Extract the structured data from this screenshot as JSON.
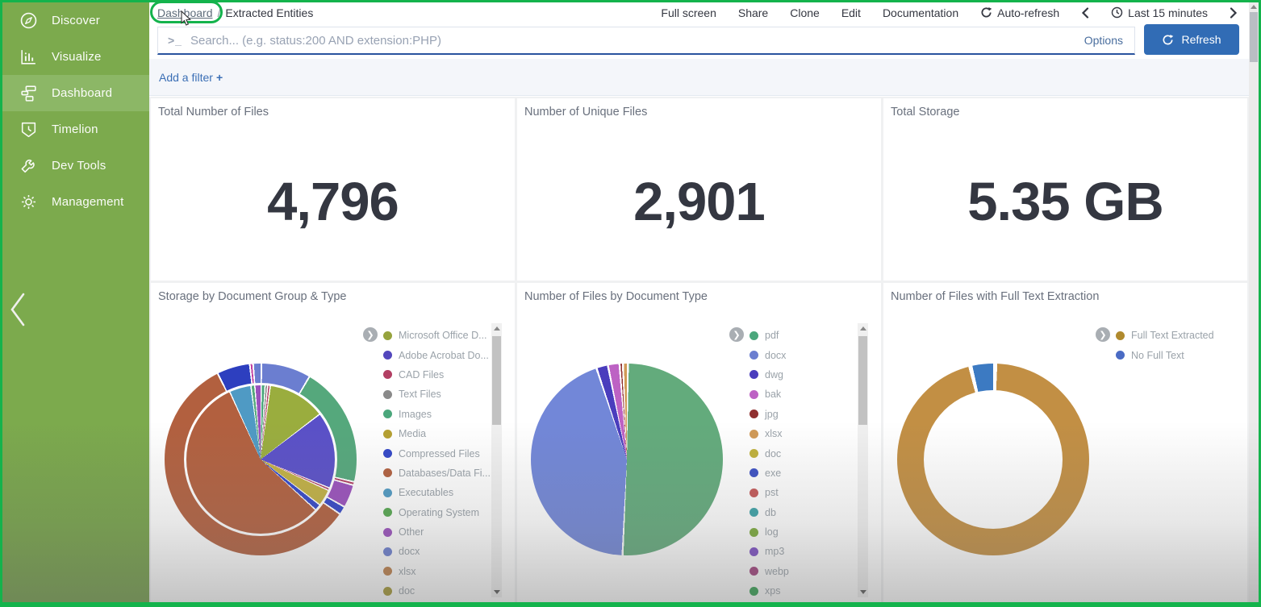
{
  "colors": {
    "annotation_green": "#14b34c",
    "sidebar_green": "#7caa4d",
    "sidebar_active": "#8cb766",
    "refresh_blue": "#316cb5",
    "link_blue": "#3b6fb5"
  },
  "sidebar": {
    "items": [
      {
        "label": "Discover",
        "icon": "compass",
        "active": false
      },
      {
        "label": "Visualize",
        "icon": "bar-chart",
        "active": false
      },
      {
        "label": "Dashboard",
        "icon": "dashboard-grid",
        "active": true
      },
      {
        "label": "Timelion",
        "icon": "timelion-shield",
        "active": false
      },
      {
        "label": "Dev Tools",
        "icon": "wrench",
        "active": false
      },
      {
        "label": "Management",
        "icon": "gear",
        "active": false
      }
    ]
  },
  "topnav": {
    "breadcrumb": {
      "link": "Dashboard",
      "separator": "/",
      "current": "Extracted Entities"
    },
    "menu": [
      "Full screen",
      "Share",
      "Clone",
      "Edit",
      "Documentation"
    ],
    "auto_refresh_label": "Auto-refresh",
    "time_range_label": "Last 15 minutes"
  },
  "search": {
    "prompt_glyph": ">_",
    "placeholder": "Search... (e.g. status:200 AND extension:PHP)",
    "value": "",
    "options_label": "Options",
    "refresh_label": "Refresh"
  },
  "filter_bar": {
    "add_filter_label": "Add a filter",
    "plus": "+"
  },
  "chart_data": [
    {
      "type": "metric",
      "title": "Total Number of Files",
      "value": "4,796"
    },
    {
      "type": "metric",
      "title": "Number of Unique Files",
      "value": "2,901"
    },
    {
      "type": "metric",
      "title": "Total Storage",
      "value": "5.35 GB"
    },
    {
      "type": "pie",
      "variant": "nested-two-ring",
      "title": "Storage by Document Group & Type",
      "legend": [
        {
          "label": "Microsoft Office D...",
          "color": "#96a33d"
        },
        {
          "label": "Adobe Acrobat Do...",
          "color": "#5347bd"
        },
        {
          "label": "CAD Files",
          "color": "#b23f63"
        },
        {
          "label": "Text Files",
          "color": "#8a8a8a"
        },
        {
          "label": "Images",
          "color": "#4ba77c"
        },
        {
          "label": "Media",
          "color": "#b5a031"
        },
        {
          "label": "Compressed Files",
          "color": "#3347c8"
        },
        {
          "label": "Databases/Data Fi...",
          "color": "#b2603f"
        },
        {
          "label": "Executables",
          "color": "#4f9ac4"
        },
        {
          "label": "Operating System",
          "color": "#55a84f"
        },
        {
          "label": "Other",
          "color": "#9a50bd"
        },
        {
          "label": "docx",
          "color": "#6b7ed0"
        },
        {
          "label": "xlsx",
          "color": "#bd7e48"
        },
        {
          "label": "doc",
          "color": "#a39630"
        }
      ],
      "inner_slices": [
        {
          "label": "Images",
          "color": "#4ba77c",
          "deg": 3
        },
        {
          "label": "Text Files",
          "color": "#8a8a8a",
          "deg": 2
        },
        {
          "label": "CAD Files",
          "color": "#b23f63",
          "deg": 2
        },
        {
          "label": "Microsoft Office Documents",
          "color": "#9aad3e",
          "deg": 45
        },
        {
          "label": "Adobe Acrobat Documents",
          "color": "#5a50c8",
          "deg": 60
        },
        {
          "label": "",
          "color": "#b23f63",
          "deg": 2
        },
        {
          "label": "Media",
          "color": "#c2b143",
          "deg": 13
        },
        {
          "label": "Compressed Files",
          "color": "#3347c8",
          "deg": 5
        },
        {
          "label": "Databases/Data Files",
          "color": "#b2603f",
          "deg": 203
        },
        {
          "label": "Executables",
          "color": "#4f9ac4",
          "deg": 17
        },
        {
          "label": "",
          "color": "#55a87c",
          "deg": 3
        },
        {
          "label": "Other",
          "color": "#9a50bd",
          "deg": 5
        }
      ],
      "outer_slices": [
        {
          "label": "docx",
          "color": "#6b7ed0",
          "deg": 30
        },
        {
          "label": "",
          "color": "#55a87c",
          "deg": 73
        },
        {
          "label": "",
          "color": "#b23f63",
          "deg": 2
        },
        {
          "label": "",
          "color": "#9a50bd",
          "deg": 14
        },
        {
          "label": "",
          "color": "#3347c8",
          "deg": 5
        },
        {
          "label": "",
          "color": "#b2603f",
          "deg": 209
        },
        {
          "label": "",
          "color": "#2d3fbf",
          "deg": 20
        },
        {
          "label": "",
          "color": "#c040a0",
          "deg": 2
        },
        {
          "label": "docx",
          "color": "#6b7ed0",
          "deg": 5
        }
      ]
    },
    {
      "type": "pie",
      "variant": "single",
      "title": "Number of Files by Document Type",
      "legend": [
        {
          "label": "pdf",
          "color": "#4ba77c"
        },
        {
          "label": "docx",
          "color": "#6b7ed0"
        },
        {
          "label": "dwg",
          "color": "#4a3dbd"
        },
        {
          "label": "bak",
          "color": "#bd62c4"
        },
        {
          "label": "jpg",
          "color": "#8f2f2f"
        },
        {
          "label": "xlsx",
          "color": "#d09a57"
        },
        {
          "label": "doc",
          "color": "#c0b13c"
        },
        {
          "label": "exe",
          "color": "#3c50c4"
        },
        {
          "label": "pst",
          "color": "#c45858"
        },
        {
          "label": "db",
          "color": "#3da3a8"
        },
        {
          "label": "log",
          "color": "#7cab3c"
        },
        {
          "label": "mp3",
          "color": "#7c4ec4"
        },
        {
          "label": "webp",
          "color": "#a03f7c"
        },
        {
          "label": "xps",
          "color": "#31a04f"
        }
      ],
      "slices": [
        {
          "label": "pdf",
          "color": "#63ab7c",
          "deg": 182
        },
        {
          "label": "docx",
          "color": "#7287d8",
          "deg": 159
        },
        {
          "label": "dwg",
          "color": "#4a3dbd",
          "deg": 7
        },
        {
          "label": "bak",
          "color": "#bd62c4",
          "deg": 7
        },
        {
          "label": "jpg",
          "color": "#8f2f2f",
          "deg": 2
        },
        {
          "label": "xlsx",
          "color": "#d09a57",
          "deg": 3
        }
      ]
    },
    {
      "type": "donut",
      "title": "Number of Files with Full Text Extraction",
      "legend": [
        {
          "label": "Full Text Extracted",
          "color": "#b08a2e"
        },
        {
          "label": "No Full Text",
          "color": "#4a6bc4"
        }
      ],
      "slices": [
        {
          "label": "Full Text Extracted",
          "color": "#c28f44",
          "deg": 345
        },
        {
          "label": "No Full Text",
          "color": "#3c7ac2",
          "deg": 15
        }
      ]
    }
  ]
}
